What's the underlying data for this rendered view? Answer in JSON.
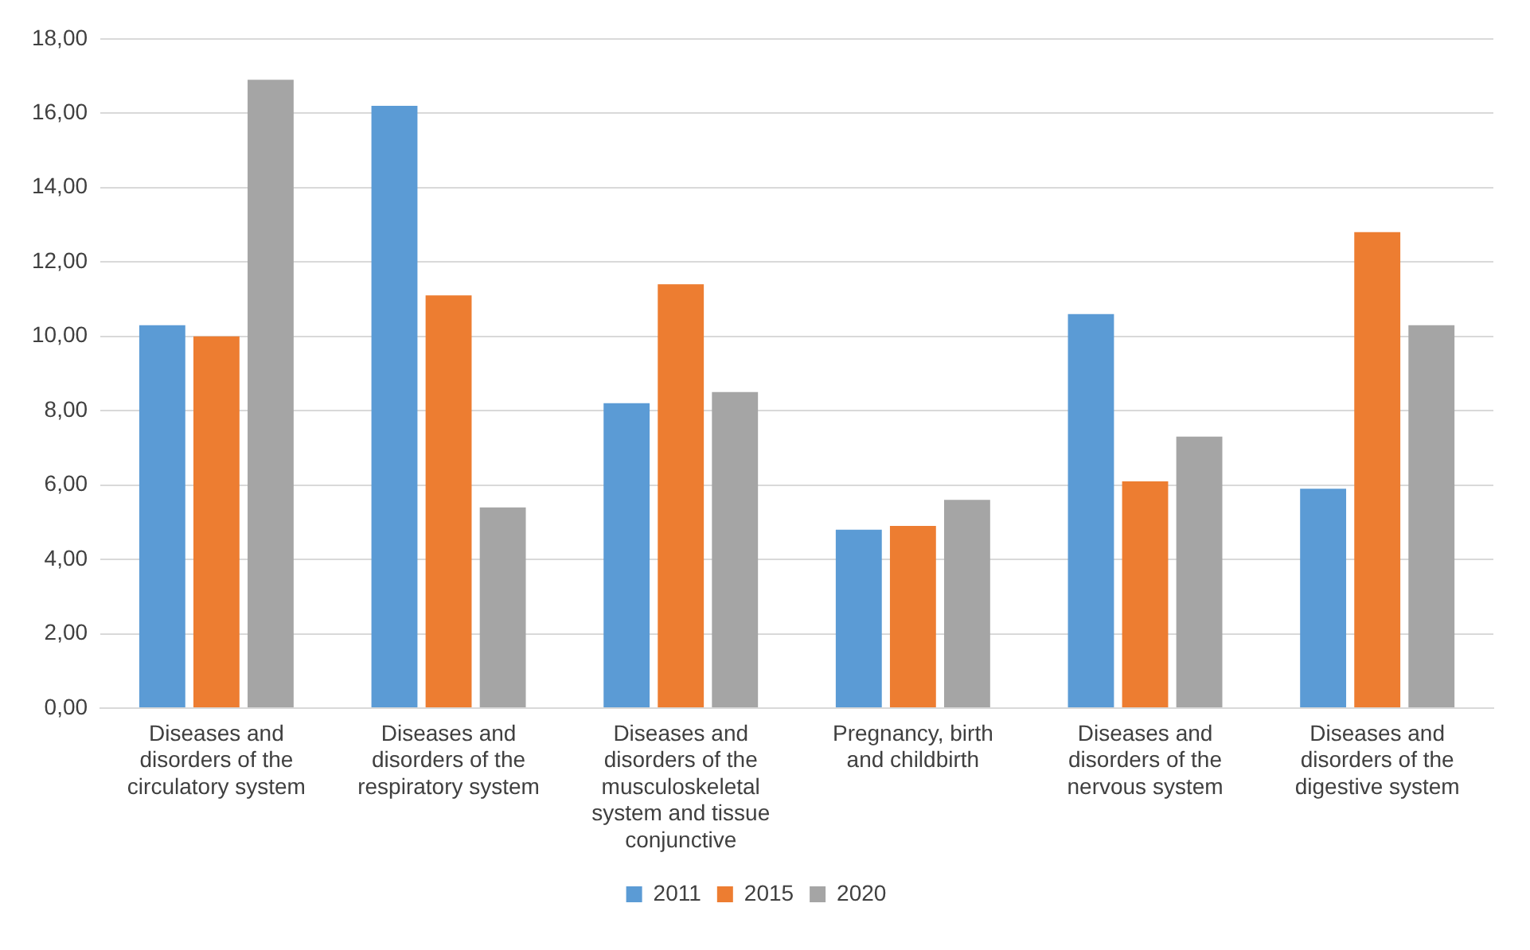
{
  "chart_data": {
    "type": "bar",
    "categories": [
      "Diseases and disorders of the circulatory system",
      "Diseases and disorders of the respiratory system",
      "Diseases and disorders of the musculoskeletal system and tissue conjunctive",
      "Pregnancy, birth and childbirth",
      "Diseases and disorders of the nervous system",
      "Diseases and disorders of the digestive system"
    ],
    "series": [
      {
        "name": "2011",
        "color": "#5b9bd5",
        "values": [
          10.3,
          16.2,
          8.2,
          4.8,
          10.6,
          5.9
        ]
      },
      {
        "name": "2015",
        "color": "#ed7d31",
        "values": [
          10.0,
          11.1,
          11.4,
          4.9,
          6.1,
          12.8
        ]
      },
      {
        "name": "2020",
        "color": "#a5a5a5",
        "values": [
          16.9,
          5.4,
          8.5,
          5.6,
          7.3,
          10.3
        ]
      }
    ],
    "ylim": [
      0,
      18
    ],
    "yticks": [
      {
        "value": 0,
        "label": "0,00"
      },
      {
        "value": 2,
        "label": "2,00"
      },
      {
        "value": 4,
        "label": "4,00"
      },
      {
        "value": 6,
        "label": "6,00"
      },
      {
        "value": 8,
        "label": "8,00"
      },
      {
        "value": 10,
        "label": "10,00"
      },
      {
        "value": 12,
        "label": "12,00"
      },
      {
        "value": 14,
        "label": "14,00"
      },
      {
        "value": 16,
        "label": "16,00"
      },
      {
        "value": 18,
        "label": "18,00"
      }
    ],
    "grid": "y",
    "legend": "bottom"
  }
}
